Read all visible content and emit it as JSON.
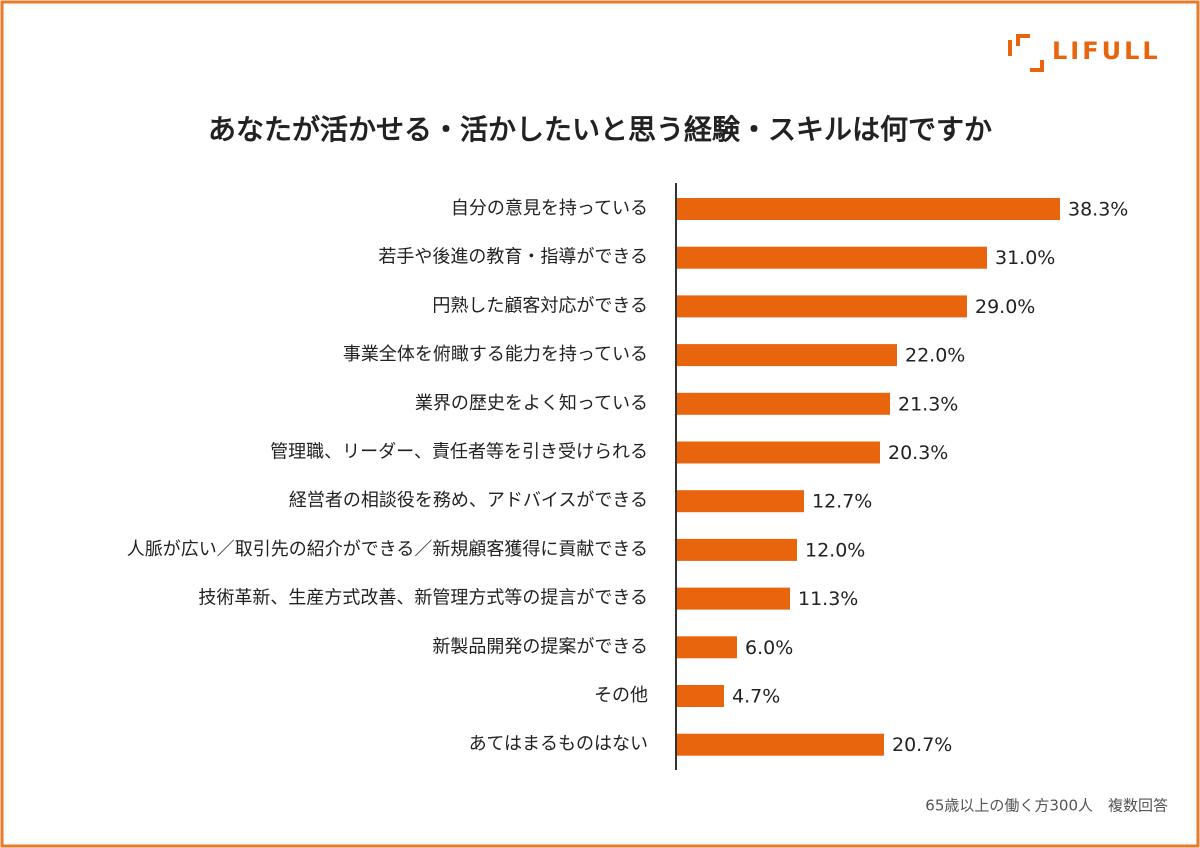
{
  "brand": "LIFULL",
  "chart_data": {
    "type": "bar",
    "orientation": "horizontal",
    "title": "あなたが活かせる・活かしたいと思う経験・スキルは何ですか",
    "note": "65歳以上の働く方300人　複数回答",
    "categories": [
      "自分の意見を持っている",
      "若手や後進の教育・指導ができる",
      "円熟した顧客対応ができる",
      "事業全体を俯瞰する能力を持っている",
      "業界の歴史をよく知っている",
      "管理職、リーダー、責任者等を引き受けられる",
      "経営者の相談役を務め、アドバイスができる",
      "人脈が広い／取引先の紹介ができる／新規顧客獲得に貢献できる",
      "技術革新、生産方式改善、新管理方式等の提言ができる",
      "新製品開発の提案ができる",
      "その他",
      "あてはまるものはない"
    ],
    "values": [
      38.3,
      31.0,
      29.0,
      22.0,
      21.3,
      20.3,
      12.7,
      12.0,
      11.3,
      6.0,
      4.7,
      20.7
    ],
    "value_labels": [
      "38.3%",
      "31.0%",
      "29.0%",
      "22.0%",
      "21.3%",
      "20.3%",
      "12.7%",
      "12.0%",
      "11.3%",
      "6.0%",
      "4.7%",
      "20.7%"
    ],
    "color": "#e8650e",
    "xlim": [
      0,
      40
    ]
  }
}
